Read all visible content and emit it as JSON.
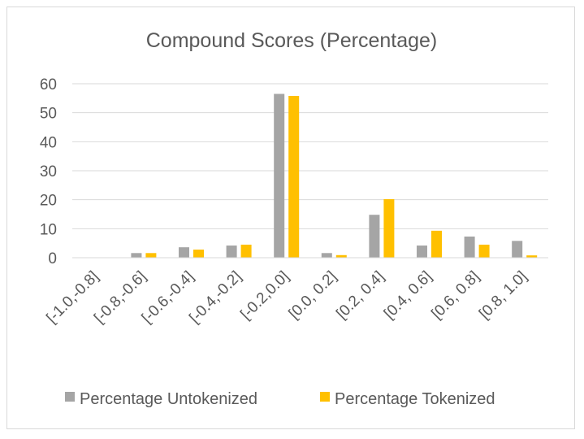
{
  "chart_data": {
    "type": "bar",
    "title": "Compound Scores (Percentage)",
    "xlabel": "",
    "ylabel": "",
    "categories": [
      "[-1.0,-0.8]",
      "[-0.8,-0.6]",
      "[-0.6,-0.4]",
      "[-0.4,-0.2]",
      "[-0.2,0.0]",
      "[0.0, 0.2]",
      "[0.2, 0.4]",
      "[0.4, 0.6]",
      "[0.6, 0.8]",
      "[0.8, 1.0]"
    ],
    "series": [
      {
        "name": "Percentage Untokenized",
        "color": "#a5a5a5",
        "values": [
          0,
          1.6,
          3.6,
          4.2,
          56.5,
          1.6,
          14.8,
          4.2,
          7.3,
          5.8
        ]
      },
      {
        "name": "Percentage Tokenized",
        "color": "#ffc000",
        "values": [
          0,
          1.6,
          2.8,
          4.5,
          55.8,
          0.9,
          20.2,
          9.3,
          4.5,
          0.8
        ]
      }
    ],
    "ylim": [
      0,
      60
    ],
    "yticks": [
      0,
      10,
      20,
      30,
      40,
      50,
      60
    ],
    "grid": true,
    "legend": "bottom"
  }
}
